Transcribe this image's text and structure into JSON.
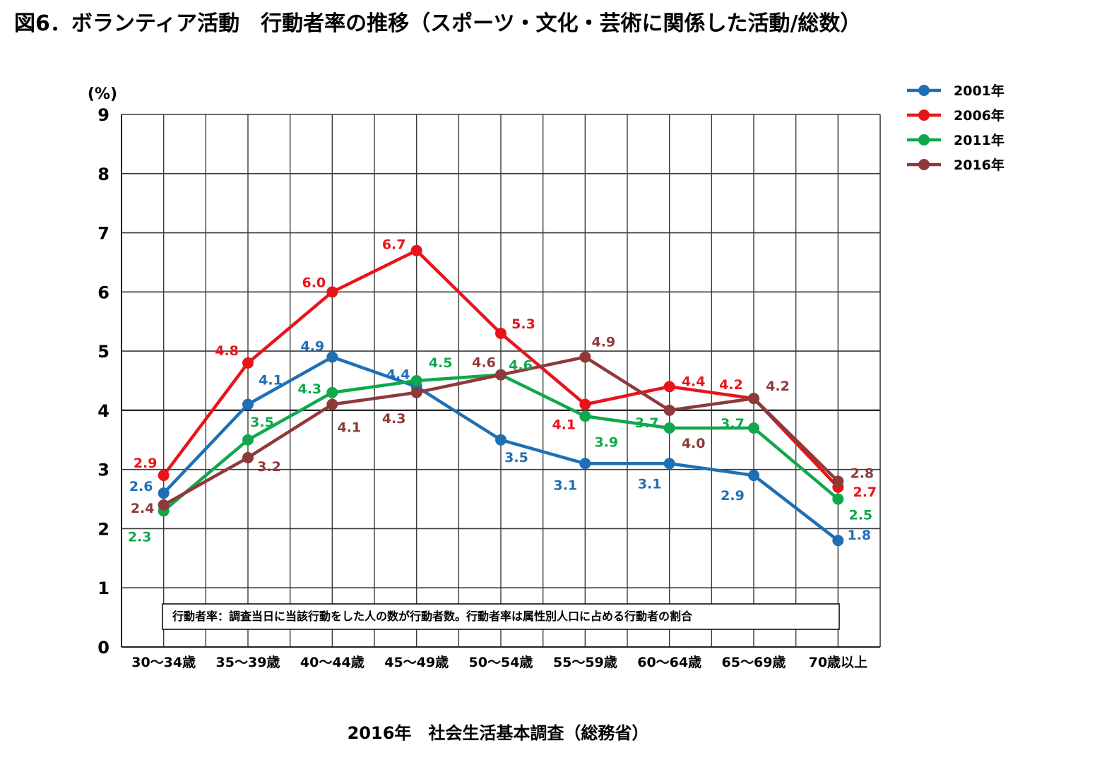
{
  "title": "図6．ボランティア活動　行動者率の推移（スポーツ・文化・芸術に関係した活動/総数）",
  "source": "2016年　社会生活基本調査（総務省）",
  "note": "行動者率：調査当日に当該行動をした人の数が行動者数。行動者率は属性別人口に占める行動者の割合",
  "chart_data": {
    "type": "line",
    "ylabel": "(%)",
    "xlabel": "",
    "ylim": [
      0,
      9
    ],
    "yticks": [
      0,
      1,
      2,
      3,
      4,
      5,
      6,
      7,
      8,
      9
    ],
    "grid": true,
    "legend_position": "top-right",
    "categories": [
      "30～34歳",
      "35～39歳",
      "40～44歳",
      "45～49歳",
      "50～54歳",
      "55～59歳",
      "60～64歳",
      "65～69歳",
      "70歳以上"
    ],
    "series": [
      {
        "name": "2001年",
        "color": "#1f6fb4",
        "values": [
          2.6,
          4.1,
          4.9,
          4.4,
          3.5,
          3.1,
          3.1,
          2.9,
          1.8
        ],
        "labels": [
          "2.6",
          "4.1",
          "4.9",
          "4.4",
          "3.5",
          "3.1",
          "3.1",
          "2.9",
          "1.8"
        ]
      },
      {
        "name": "2006年",
        "color": "#e8141b",
        "values": [
          2.9,
          4.8,
          6.0,
          6.7,
          5.3,
          4.1,
          4.4,
          4.2,
          2.7
        ],
        "labels": [
          "2.9",
          "4.8",
          "6.0",
          "6.7",
          "5.3",
          "4.1",
          "4.4",
          "4.2",
          "2.7"
        ]
      },
      {
        "name": "2011年",
        "color": "#0fa84b",
        "values": [
          2.3,
          3.5,
          4.3,
          4.5,
          4.6,
          3.9,
          3.7,
          3.7,
          2.5
        ],
        "labels": [
          "2.3",
          "3.5",
          "4.3",
          "4.5",
          "4.6",
          "3.9",
          "3.7",
          "3.7",
          "2.5"
        ]
      },
      {
        "name": "2016年",
        "color": "#8e3a3a",
        "values": [
          2.4,
          3.2,
          4.1,
          4.3,
          4.6,
          4.9,
          4.0,
          4.2,
          2.8
        ],
        "labels": [
          "2.4",
          "3.2",
          "4.1",
          "4.3",
          "4.6",
          "4.9",
          "4.0",
          "4.2",
          "2.8"
        ]
      }
    ]
  }
}
